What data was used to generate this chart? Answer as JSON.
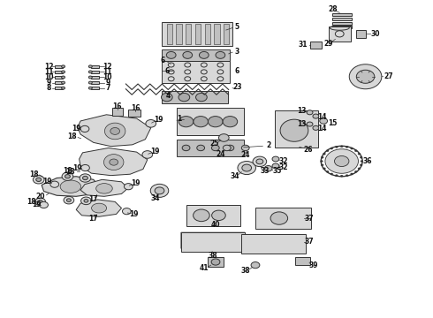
{
  "bg_color": "#ffffff",
  "fig_width": 4.9,
  "fig_height": 3.6,
  "dpi": 100,
  "line_color": "#333333",
  "label_color": "#111111",
  "label_fontsize": 5.5,
  "gray_light": "#d8d8d8",
  "gray_mid": "#c0c0c0",
  "gray_dark": "#aaaaaa",
  "gray_fill": "#b8b8b8"
}
